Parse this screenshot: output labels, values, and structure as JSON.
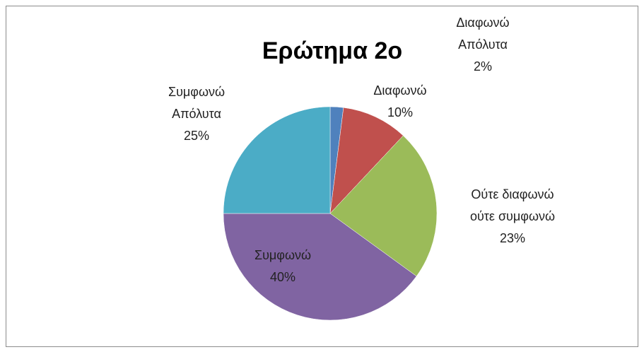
{
  "chart_data": {
    "type": "pie",
    "title": "Ερώτημα 2ο",
    "categories": [
      "Διαφωνώ Απόλυτα",
      "Διαφωνώ",
      "Ούτε διαφωνώ ούτε συμφωνώ",
      "Συμφωνώ",
      "Συμφωνώ Απόλυτα"
    ],
    "values": [
      2,
      10,
      23,
      40,
      25
    ],
    "value_labels": [
      "2%",
      "10%",
      "23%",
      "40%",
      "25%"
    ],
    "colors": [
      "#4f81bd",
      "#c0504d",
      "#9bbb59",
      "#8064a2",
      "#4bacc6"
    ]
  }
}
